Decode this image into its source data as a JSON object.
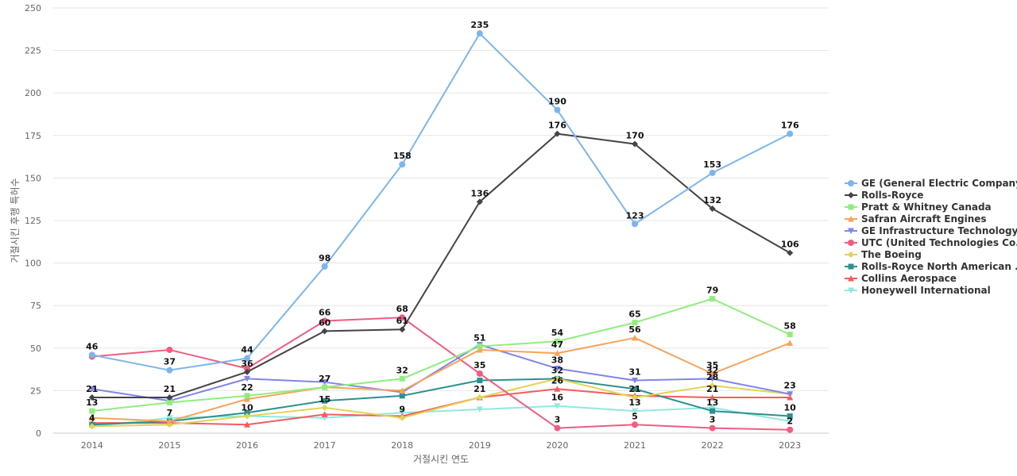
{
  "chart_data": {
    "type": "line",
    "xlabel": "거절시킨 연도",
    "ylabel": "거절시킨 후행 특허수",
    "ylim": [
      0,
      250
    ],
    "yticks": [
      0,
      25,
      50,
      75,
      100,
      125,
      150,
      175,
      200,
      225,
      250
    ],
    "grid": true,
    "legend_position": "right",
    "categories": [
      "2014",
      "2015",
      "2016",
      "2017",
      "2018",
      "2019",
      "2020",
      "2021",
      "2022",
      "2023"
    ],
    "series": [
      {
        "name": "GE (General Electric Company)",
        "color": "#7cb5ec",
        "marker": "circle",
        "values": [
          46,
          37,
          44,
          98,
          158,
          235,
          190,
          123,
          153,
          176
        ],
        "labeled": [
          true,
          true,
          true,
          true,
          true,
          true,
          true,
          true,
          true,
          true
        ]
      },
      {
        "name": "Rolls-Royce",
        "color": "#434348",
        "marker": "diamond",
        "values": [
          21,
          21,
          36,
          60,
          61,
          136,
          176,
          170,
          132,
          106
        ],
        "labeled": [
          true,
          true,
          true,
          true,
          true,
          true,
          true,
          true,
          true,
          true
        ]
      },
      {
        "name": "Pratt & Whitney Canada",
        "color": "#90ed7d",
        "marker": "square",
        "values": [
          13,
          18,
          22,
          27,
          32,
          51,
          54,
          65,
          79,
          58
        ],
        "labeled": [
          true,
          false,
          true,
          true,
          true,
          true,
          true,
          true,
          true,
          true
        ]
      },
      {
        "name": "Safran Aircraft Engines",
        "color": "#f7a35c",
        "marker": "triangle",
        "values": [
          9,
          7,
          20,
          27,
          25,
          49,
          47,
          56,
          35,
          53
        ],
        "labeled": [
          false,
          true,
          false,
          false,
          false,
          false,
          true,
          true,
          true,
          false
        ]
      },
      {
        "name": "GE Infrastructure Technology",
        "color": "#8085e9",
        "marker": "triangle-down",
        "values": [
          26,
          19,
          32,
          30,
          24,
          52,
          38,
          31,
          32,
          23
        ],
        "labeled": [
          false,
          false,
          false,
          false,
          false,
          false,
          true,
          true,
          true,
          true
        ]
      },
      {
        "name": "UTC (United Technologies Co...",
        "color": "#f15c80",
        "marker": "circle",
        "values": [
          45,
          49,
          38,
          66,
          68,
          35,
          3,
          5,
          3,
          2
        ],
        "labeled": [
          false,
          false,
          false,
          true,
          true,
          true,
          true,
          true,
          true,
          true
        ]
      },
      {
        "name": "The Boeing",
        "color": "#e4d354",
        "marker": "diamond",
        "values": [
          4,
          5,
          10,
          15,
          9,
          21,
          32,
          21,
          28,
          23
        ],
        "labeled": [
          true,
          false,
          false,
          true,
          true,
          true,
          true,
          true,
          true,
          false
        ]
      },
      {
        "name": "Rolls-Royce North American ...",
        "color": "#2b908f",
        "marker": "square",
        "values": [
          5,
          7,
          12,
          19,
          22,
          31,
          32,
          26,
          13,
          10
        ],
        "labeled": [
          false,
          false,
          false,
          false,
          false,
          false,
          false,
          false,
          true,
          true
        ]
      },
      {
        "name": "Collins Aerospace",
        "color": "#f45b5b",
        "marker": "triangle",
        "values": [
          6,
          6,
          5,
          11,
          10,
          21,
          26,
          22,
          21,
          21
        ],
        "labeled": [
          false,
          false,
          false,
          false,
          false,
          false,
          true,
          false,
          true,
          false
        ]
      },
      {
        "name": "Honeywell International",
        "color": "#91e8e1",
        "marker": "triangle-down",
        "values": [
          4,
          9,
          10,
          9,
          12,
          14,
          16,
          13,
          15,
          7
        ],
        "labeled": [
          false,
          false,
          true,
          false,
          false,
          false,
          true,
          true,
          false,
          false
        ]
      }
    ]
  }
}
